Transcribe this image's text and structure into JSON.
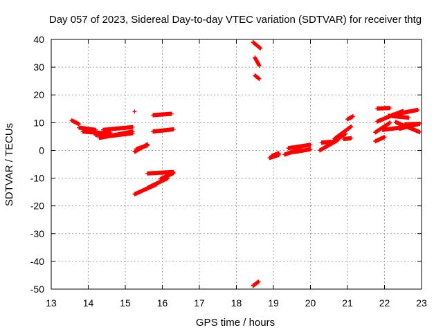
{
  "chart_data": {
    "type": "scatter",
    "title": "Day 057 of 2023, Sidereal Day-to-day VTEC variation (SDTVAR) for receiver thtg",
    "xlabel": "GPS time / hours",
    "ylabel": "SDTVAR / TECUs",
    "xlim": [
      13,
      23
    ],
    "ylim": [
      -50,
      40
    ],
    "xticks": [
      13,
      14,
      15,
      16,
      17,
      18,
      19,
      20,
      21,
      22,
      23
    ],
    "yticks": [
      -50,
      -40,
      -30,
      -20,
      -10,
      0,
      10,
      20,
      30,
      40
    ],
    "grid": true,
    "marker": "plus",
    "color": "#ff0000",
    "segments": [
      {
        "x": [
          13.55,
          13.75
        ],
        "y": [
          10.8,
          9.5
        ]
      },
      {
        "x": [
          13.75,
          14.2
        ],
        "y": [
          8.2,
          7.4
        ]
      },
      {
        "x": [
          13.85,
          14.4
        ],
        "y": [
          6.8,
          6.2
        ]
      },
      {
        "x": [
          14.2,
          14.6
        ],
        "y": [
          5.5,
          6.4
        ]
      },
      {
        "x": [
          14.3,
          15.2
        ],
        "y": [
          4.5,
          6.8
        ]
      },
      {
        "x": [
          14.4,
          15.2
        ],
        "y": [
          7.4,
          8.4
        ]
      },
      {
        "x": [
          14.6,
          15.2
        ],
        "y": [
          5.2,
          6.2
        ]
      },
      {
        "x": [
          15.25,
          15.25
        ],
        "y": [
          14,
          14
        ]
      },
      {
        "x": [
          15.25,
          15.6
        ],
        "y": [
          -0.5,
          2.2
        ]
      },
      {
        "x": [
          15.3,
          15.6
        ],
        "y": [
          0.5,
          1.8
        ]
      },
      {
        "x": [
          15.25,
          15.85
        ],
        "y": [
          -15.8,
          -12.2
        ]
      },
      {
        "x": [
          15.6,
          16.15
        ],
        "y": [
          -13.5,
          -10
        ]
      },
      {
        "x": [
          15.6,
          16.3
        ],
        "y": [
          -8.3,
          -7.8
        ]
      },
      {
        "x": [
          15.95,
          16.3
        ],
        "y": [
          -10.3,
          -8.2
        ]
      },
      {
        "x": [
          15.75,
          16.25
        ],
        "y": [
          12.7,
          13.2
        ]
      },
      {
        "x": [
          15.75,
          16.3
        ],
        "y": [
          6.8,
          7.6
        ]
      },
      {
        "x": [
          18.45,
          18.65
        ],
        "y": [
          39,
          36.8
        ]
      },
      {
        "x": [
          18.5,
          18.62
        ],
        "y": [
          33.5,
          30.5
        ]
      },
      {
        "x": [
          18.5,
          18.62
        ],
        "y": [
          27,
          25.8
        ]
      },
      {
        "x": [
          18.45,
          18.6
        ],
        "y": [
          -48.8,
          -47.3
        ]
      },
      {
        "x": [
          18.9,
          19.15
        ],
        "y": [
          -2.7,
          -1.6
        ]
      },
      {
        "x": [
          18.95,
          19.15
        ],
        "y": [
          -2,
          -1
        ]
      },
      {
        "x": [
          19.3,
          19.75
        ],
        "y": [
          -1.5,
          0.5
        ]
      },
      {
        "x": [
          19.4,
          20.0
        ],
        "y": [
          0.8,
          2
        ]
      },
      {
        "x": [
          19.55,
          20.0
        ],
        "y": [
          -0.6,
          0.4
        ]
      },
      {
        "x": [
          20.25,
          20.75
        ],
        "y": [
          0,
          3.8
        ]
      },
      {
        "x": [
          20.3,
          20.55
        ],
        "y": [
          2.8,
          3.1
        ]
      },
      {
        "x": [
          20.45,
          20.95
        ],
        "y": [
          1.8,
          6
        ]
      },
      {
        "x": [
          20.65,
          21.1
        ],
        "y": [
          4.2,
          8.6
        ]
      },
      {
        "x": [
          20.9,
          21.1
        ],
        "y": [
          4.1,
          4.4
        ]
      },
      {
        "x": [
          21.0,
          21.15
        ],
        "y": [
          11.2,
          12.3
        ]
      },
      {
        "x": [
          21.75,
          22.0
        ],
        "y": [
          3.3,
          4.8
        ]
      },
      {
        "x": [
          21.75,
          22.15
        ],
        "y": [
          6.5,
          10
        ]
      },
      {
        "x": [
          21.8,
          22.15
        ],
        "y": [
          15.1,
          15.3
        ]
      },
      {
        "x": [
          21.8,
          22.5
        ],
        "y": [
          10.4,
          14.2
        ]
      },
      {
        "x": [
          21.95,
          22.55
        ],
        "y": [
          7.4,
          8.4
        ]
      },
      {
        "x": [
          22.1,
          22.65
        ],
        "y": [
          12.5,
          11.8
        ]
      },
      {
        "x": [
          22.2,
          22.9
        ],
        "y": [
          12.8,
          14.6
        ]
      },
      {
        "x": [
          22.3,
          22.95
        ],
        "y": [
          10.2,
          6.6
        ]
      },
      {
        "x": [
          22.4,
          22.95
        ],
        "y": [
          7.8,
          9.6
        ]
      },
      {
        "x": [
          22.55,
          22.95
        ],
        "y": [
          9.4,
          9.6
        ]
      }
    ]
  }
}
